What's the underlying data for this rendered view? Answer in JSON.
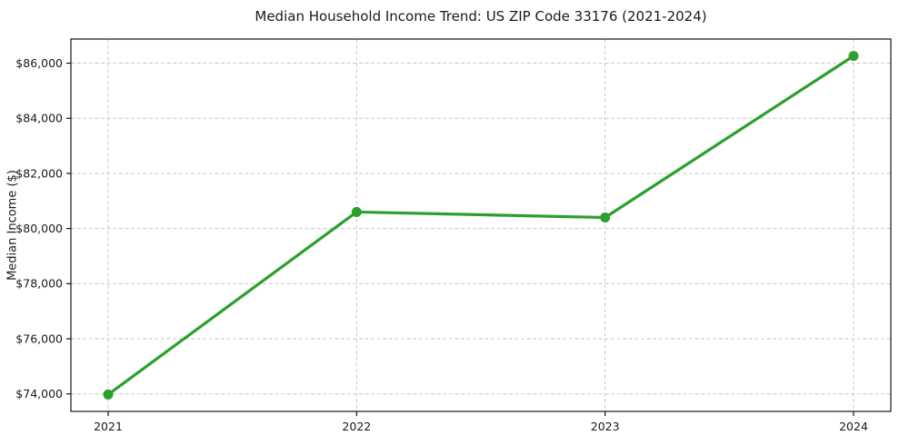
{
  "chart_data": {
    "type": "line",
    "title": "Median Household Income Trend: US ZIP Code 33176 (2021-2024)",
    "xlabel": "",
    "ylabel": "Median Income ($)",
    "x": [
      2021,
      2022,
      2023,
      2024
    ],
    "series": [
      {
        "name": "Median Household Income",
        "values": [
          73980,
          80600,
          80400,
          86260
        ]
      }
    ],
    "xticks": [
      {
        "value": 2021,
        "label": "2021"
      },
      {
        "value": 2022,
        "label": "2022"
      },
      {
        "value": 2023,
        "label": "2023"
      },
      {
        "value": 2024,
        "label": "2024"
      }
    ],
    "yticks": [
      {
        "value": 74000,
        "label": "$74,000"
      },
      {
        "value": 76000,
        "label": "$76,000"
      },
      {
        "value": 78000,
        "label": "$78,000"
      },
      {
        "value": 80000,
        "label": "$80,000"
      },
      {
        "value": 82000,
        "label": "$82,000"
      },
      {
        "value": 84000,
        "label": "$84,000"
      },
      {
        "value": 86000,
        "label": "$86,000"
      }
    ],
    "xlim": [
      2020.85,
      2024.15
    ],
    "ylim": [
      73366,
      86874
    ],
    "grid": true,
    "grid_style": "dashed",
    "legend": "none",
    "line_color": "#2ca02c",
    "marker": "circle",
    "background": "#ffffff"
  }
}
